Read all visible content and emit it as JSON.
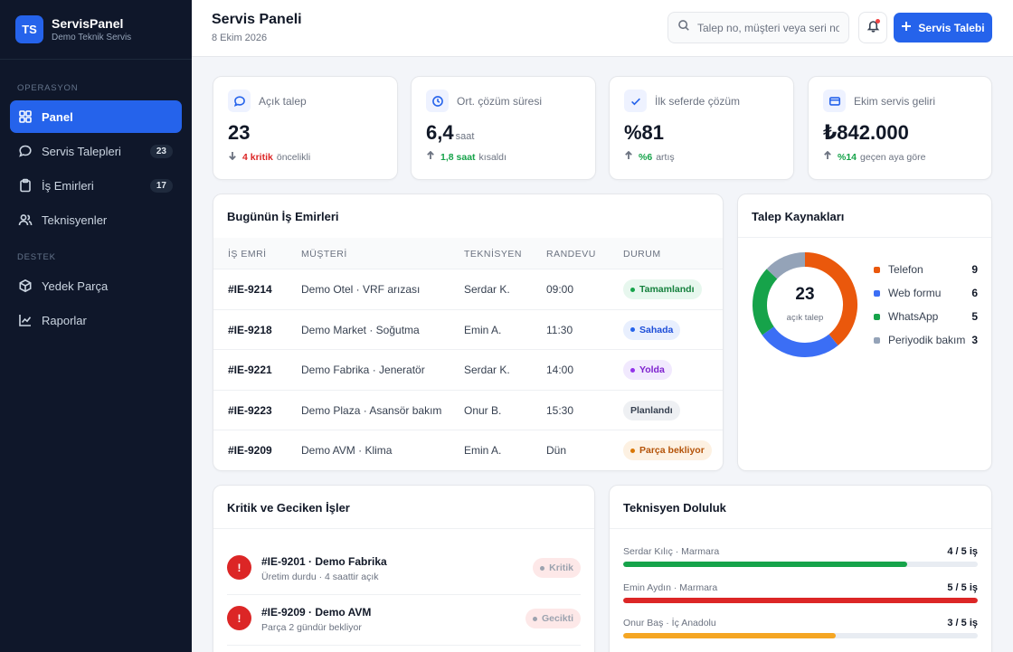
{
  "brand": {
    "initials": "TS",
    "name": "ServisPanel",
    "subtitle": "Demo Teknik Servis"
  },
  "sidebar": {
    "section_ops": "OPERASYON",
    "section_support": "DESTEK",
    "items": [
      {
        "label": "Panel",
        "icon": "grid-icon",
        "active": true
      },
      {
        "label": "Servis Talepleri",
        "icon": "chat-icon",
        "badge": "23"
      },
      {
        "label": "İş Emirleri",
        "icon": "clipboard-icon",
        "badge": "17"
      },
      {
        "label": "Teknisyenler",
        "icon": "users-icon"
      },
      {
        "label": "Yedek Parça",
        "icon": "box-icon"
      },
      {
        "label": "Raporlar",
        "icon": "chart-icon"
      }
    ]
  },
  "header": {
    "title": "Servis Paneli",
    "date": "8 Ekim 2026",
    "search_placeholder": "Talep no, müşteri veya seri no ara",
    "new_button": "Servis Talebi"
  },
  "stats": [
    {
      "label": "Açık talep",
      "value": "23",
      "unit": "",
      "delta_strong": "4 kritik",
      "delta_text": "öncelikli",
      "direction": "down",
      "tone": "red",
      "icon": "chat-icon"
    },
    {
      "label": "Ort. çözüm süresi",
      "value": "6,4",
      "unit": "saat",
      "delta_strong": "1,8 saat",
      "delta_text": "kısaldı",
      "direction": "up",
      "tone": "green",
      "icon": "clock-icon"
    },
    {
      "label": "İlk seferde çözüm",
      "value": "%81",
      "unit": "",
      "delta_strong": "%6",
      "delta_text": "artış",
      "direction": "up",
      "tone": "green",
      "icon": "check-icon"
    },
    {
      "label": "Ekim servis geliri",
      "value": "₺842.000",
      "unit": "",
      "delta_strong": "%14",
      "delta_text": "geçen aya göre",
      "direction": "up",
      "tone": "green",
      "icon": "card-icon"
    }
  ],
  "work_orders": {
    "title": "Bugünün İş Emirleri",
    "columns": [
      "İŞ EMRİ",
      "MÜŞTERİ",
      "TEKNİSYEN",
      "RANDEVU",
      "DURUM"
    ],
    "rows": [
      {
        "id": "#IE-9214",
        "customer": "Demo Otel · VRF arızası",
        "tech": "Serdar K.",
        "time": "09:00",
        "status": "Tamamlandı",
        "bg": "#e7f7ee",
        "fg": "#15803d",
        "dot": "#16a34a"
      },
      {
        "id": "#IE-9218",
        "customer": "Demo Market · Soğutma",
        "tech": "Emin A.",
        "time": "11:30",
        "status": "Sahada",
        "bg": "#e8effe",
        "fg": "#1d4ed8",
        "dot": "#2563eb"
      },
      {
        "id": "#IE-9221",
        "customer": "Demo Fabrika · Jeneratör",
        "tech": "Serdar K.",
        "time": "14:00",
        "status": "Yolda",
        "bg": "#f1e9fe",
        "fg": "#7e22ce",
        "dot": "#9333ea"
      },
      {
        "id": "#IE-9223",
        "customer": "Demo Plaza · Asansör bakım",
        "tech": "Onur B.",
        "time": "15:30",
        "status": "Planlandı",
        "bg": "#eef0f3",
        "fg": "#374151",
        "dot": ""
      },
      {
        "id": "#IE-9209",
        "customer": "Demo AVM · Klima",
        "tech": "Emin A.",
        "time": "Dün",
        "status": "Parça bekliyor",
        "bg": "#fdf1e2",
        "fg": "#b45309",
        "dot": "#d97706"
      }
    ]
  },
  "sources": {
    "title": "Talep Kaynakları",
    "total": "23",
    "total_label": "açık talep",
    "items": [
      {
        "name": "Telefon",
        "value": 9,
        "color": "#ea580c"
      },
      {
        "name": "Web formu",
        "value": 6,
        "color": "#3b6ef5"
      },
      {
        "name": "WhatsApp",
        "value": 5,
        "color": "#16a34a"
      },
      {
        "name": "Periyodik bakım",
        "value": 3,
        "color": "#94a3b8"
      }
    ]
  },
  "critical": {
    "title": "Kritik ve Geciken İşler",
    "items": [
      {
        "icon_text": "!",
        "title": "#IE-9201 · Demo Fabrika",
        "sub": "Üretim durdu · 4 saattir açık",
        "tag": "Kritik"
      },
      {
        "icon_text": "!",
        "title": "#IE-9209 · Demo AVM",
        "sub": "Parça 2 gündür bekliyor",
        "tag": "Gecikti"
      }
    ]
  },
  "techload": {
    "title": "Teknisyen Doluluk",
    "items": [
      {
        "name": "Serdar Kılıç · Marmara",
        "value": "4 / 5 iş",
        "ratio": 0.8,
        "color": "#16a34a"
      },
      {
        "name": "Emin Aydın · Marmara",
        "value": "5 / 5 iş",
        "ratio": 1.0,
        "color": "#dc2626"
      },
      {
        "name": "Onur Baş · İç Anadolu",
        "value": "3 / 5 iş",
        "ratio": 0.6,
        "color": "#f5a623"
      }
    ]
  }
}
